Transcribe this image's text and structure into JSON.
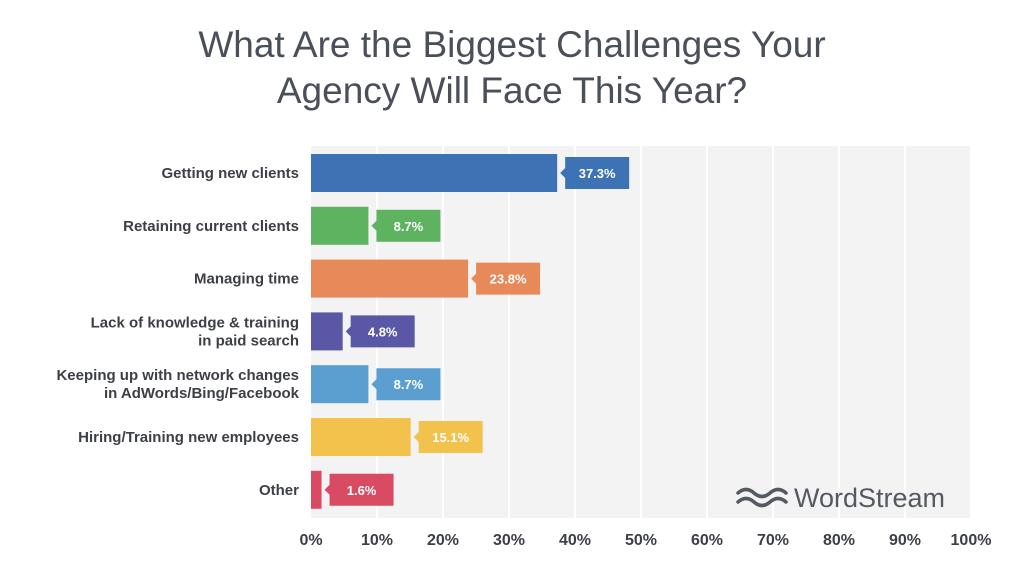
{
  "chart_data": {
    "type": "bar",
    "orientation": "horizontal",
    "title": [
      "What Are the Biggest Challenges Your",
      "Agency Will Face This Year?"
    ],
    "categories": [
      [
        "Getting new clients"
      ],
      [
        "Retaining current clients"
      ],
      [
        "Managing time"
      ],
      [
        "Lack of knowledge & training",
        "in paid search"
      ],
      [
        "Keeping up with network changes",
        "in AdWords/Bing/Facebook"
      ],
      [
        "Hiring/Training new employees"
      ],
      [
        "Other"
      ]
    ],
    "values": [
      37.3,
      8.7,
      23.8,
      4.8,
      8.7,
      15.1,
      1.6
    ],
    "value_labels": [
      "37.3%",
      "8.7%",
      "23.8%",
      "4.8%",
      "8.7%",
      "15.1%",
      "1.6%"
    ],
    "colors": [
      "#3d72b4",
      "#5db35f",
      "#e8895a",
      "#5a58a6",
      "#5a9fcf",
      "#f2c24c",
      "#d94a63"
    ],
    "xlim": [
      0,
      100
    ],
    "xticks": [
      0,
      10,
      20,
      30,
      40,
      50,
      60,
      70,
      80,
      90,
      100
    ],
    "xtick_labels": [
      "0%",
      "10%",
      "20%",
      "30%",
      "40%",
      "50%",
      "60%",
      "70%",
      "80%",
      "90%",
      "100%"
    ],
    "grid": true,
    "legend": "none"
  },
  "watermark": {
    "text": "WordStream",
    "icon": "wave-icon"
  },
  "colors": {
    "plot_bg": "#f3f3f3",
    "grid": "#ffffff",
    "text": "#3c3f45"
  }
}
